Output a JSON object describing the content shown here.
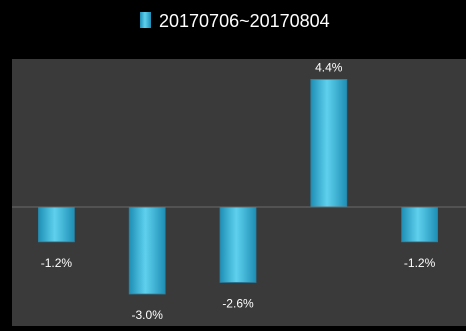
{
  "chart_data": {
    "type": "bar",
    "categories": [
      "",
      "",
      "",
      "",
      ""
    ],
    "series": [
      {
        "name": "20170706~20170804",
        "values": [
          -1.2,
          -3.0,
          -2.6,
          4.4,
          -1.2
        ],
        "labels": [
          "-1.2%",
          "-3.0%",
          "-2.6%",
          "4.4%",
          "-1.2%"
        ]
      }
    ],
    "ylim": [
      -3.5,
      5.5
    ],
    "title": "",
    "xlabel": "",
    "ylabel": "",
    "grid": false,
    "legend": "top-center"
  },
  "colors": {
    "page_background": "#000000",
    "plot_background": "#3a3a3a",
    "bar_top": "#5fd1ee",
    "bar_bottom": "#1e8fb5",
    "bar_edge": "#2a7fa0",
    "axis_line": "#6a6a6a",
    "label_text": "#ffffff"
  }
}
